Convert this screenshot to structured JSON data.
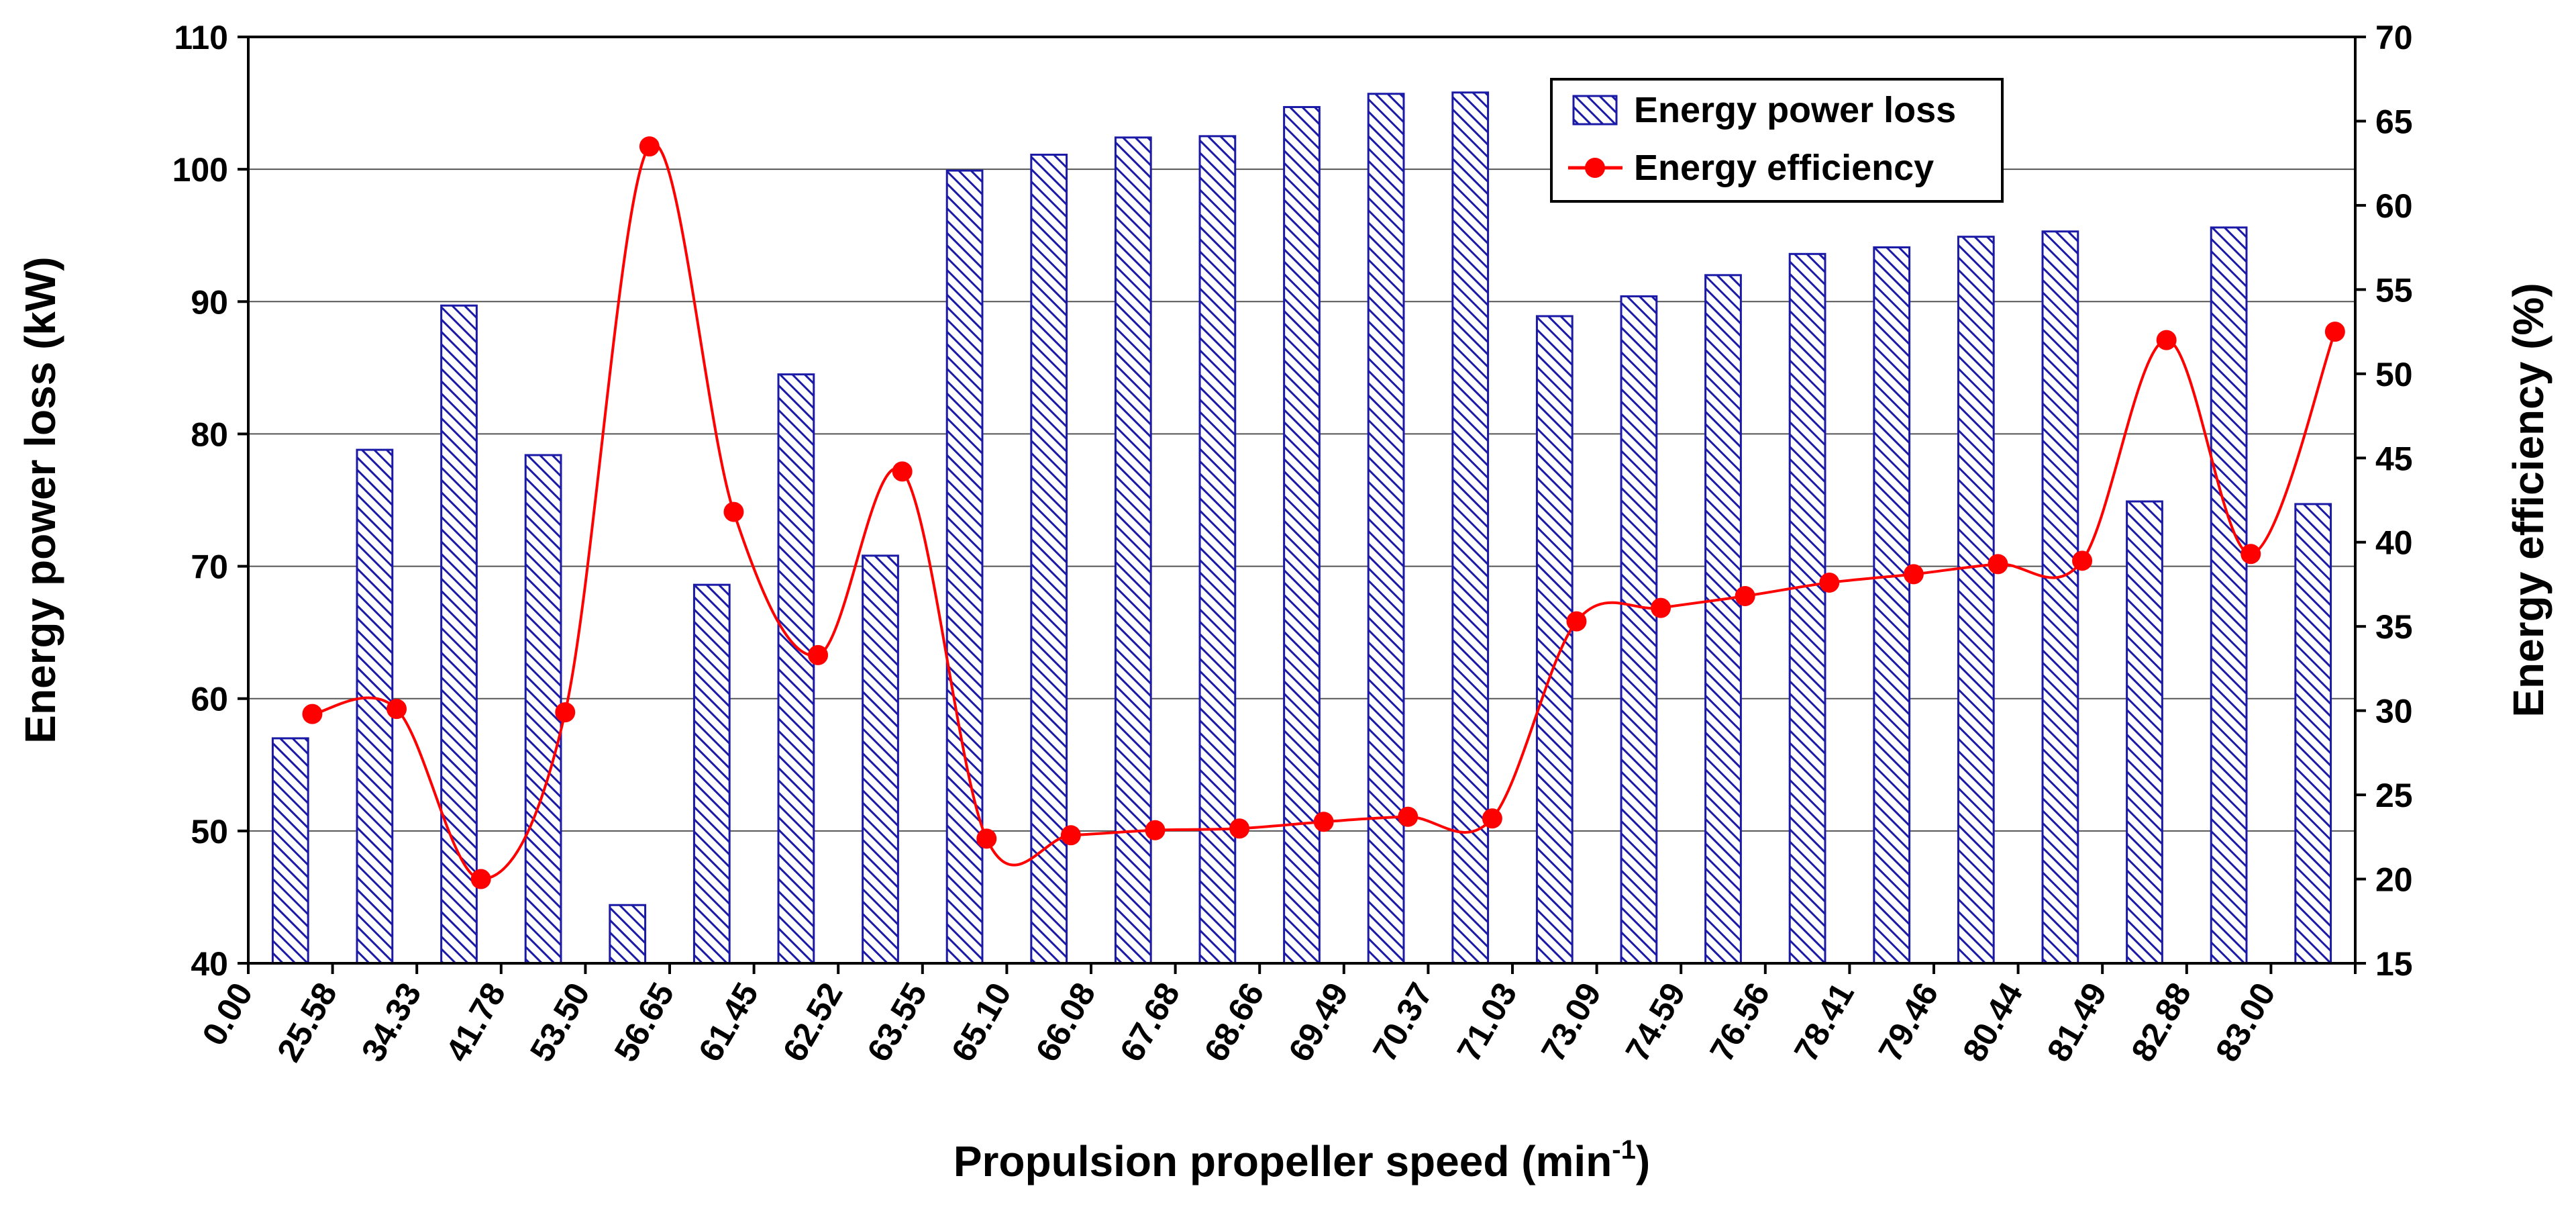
{
  "chart_data": {
    "type": "bar+line",
    "xlabel": "Propulsion propeller speed (min",
    "xlabel_sup": "-1",
    "xlabel_close": ")",
    "categories": [
      "0.00",
      "25.58",
      "34.33",
      "41.78",
      "53.50",
      "56.65",
      "61.45",
      "62.52",
      "63.55",
      "65.10",
      "66.08",
      "67.68",
      "68.66",
      "69.49",
      "70.37",
      "71.03",
      "73.09",
      "74.59",
      "76.56",
      "78.41",
      "79.46",
      "80.44",
      "81.49",
      "82.88",
      "83.00"
    ],
    "series": [
      {
        "name": "Energy power loss",
        "type": "bar",
        "axis": "left",
        "color": "#1a1aa6",
        "values": [
          57.0,
          78.8,
          89.7,
          78.4,
          44.4,
          68.6,
          84.5,
          70.8,
          99.9,
          101.1,
          102.4,
          102.5,
          104.7,
          105.7,
          105.8,
          88.9,
          90.4,
          92.0,
          93.6,
          94.1,
          94.9,
          95.3,
          74.9,
          95.6,
          74.7
        ]
      },
      {
        "name": "Energy efficiency",
        "type": "line",
        "axis": "right",
        "color": "#ff0000",
        "values": [
          29.8,
          30.1,
          20.0,
          29.9,
          63.5,
          41.8,
          33.3,
          44.2,
          22.4,
          22.6,
          22.9,
          23.0,
          23.4,
          23.7,
          23.6,
          35.3,
          36.1,
          36.8,
          37.6,
          38.1,
          38.7,
          38.9,
          52.0,
          39.3,
          52.5
        ]
      }
    ],
    "ylabel_left": "Energy power loss (kW)",
    "ylabel_right": "Energy efficiency (%)",
    "ylim_left": [
      40,
      110
    ],
    "ylim_right": [
      15,
      70
    ],
    "yticks_left": [
      "40",
      "50",
      "60",
      "70",
      "80",
      "90",
      "100",
      "110"
    ],
    "yticks_right": [
      "15",
      "20",
      "25",
      "30",
      "35",
      "40",
      "45",
      "50",
      "55",
      "60",
      "65",
      "70"
    ],
    "legend_position": "top-center",
    "grid": true
  }
}
